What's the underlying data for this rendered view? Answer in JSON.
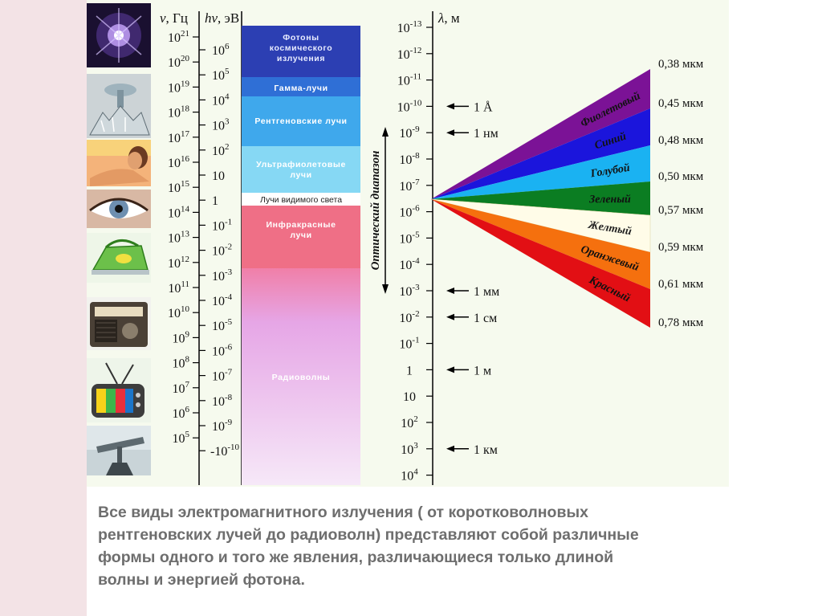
{
  "headers": {
    "nu_symbol": "ν",
    "nu_unit": ", Гц",
    "hnu_symbol": "hν",
    "hnu_unit": ", эВ",
    "lambda_symbol": "λ",
    "lambda_unit": ", м"
  },
  "frequency_ticks": [
    {
      "base": "10",
      "exp": "21"
    },
    {
      "base": "10",
      "exp": "20"
    },
    {
      "base": "10",
      "exp": "19"
    },
    {
      "base": "10",
      "exp": "18"
    },
    {
      "base": "10",
      "exp": "17"
    },
    {
      "base": "10",
      "exp": "16"
    },
    {
      "base": "10",
      "exp": "15"
    },
    {
      "base": "10",
      "exp": "14"
    },
    {
      "base": "10",
      "exp": "13"
    },
    {
      "base": "10",
      "exp": "12"
    },
    {
      "base": "10",
      "exp": "11"
    },
    {
      "base": "10",
      "exp": "10"
    },
    {
      "base": "10",
      "exp": "9"
    },
    {
      "base": "10",
      "exp": "8"
    },
    {
      "base": "10",
      "exp": "7"
    },
    {
      "base": "10",
      "exp": "6"
    },
    {
      "base": "10",
      "exp": "5"
    }
  ],
  "energy_ticks": [
    {
      "base": "10",
      "exp": "6"
    },
    {
      "base": "10",
      "exp": "5"
    },
    {
      "base": "10",
      "exp": "4"
    },
    {
      "base": "10",
      "exp": "3"
    },
    {
      "base": "10",
      "exp": "2"
    },
    {
      "base": "10",
      "exp": ""
    },
    {
      "base": "1",
      "exp": ""
    },
    {
      "base": "10",
      "exp": "-1"
    },
    {
      "base": "10",
      "exp": "-2"
    },
    {
      "base": "10",
      "exp": "-3"
    },
    {
      "base": "10",
      "exp": "-4"
    },
    {
      "base": "10",
      "exp": "-5"
    },
    {
      "base": "10",
      "exp": "-6"
    },
    {
      "base": "10",
      "exp": "-7"
    },
    {
      "base": "10",
      "exp": "-8"
    },
    {
      "base": "10",
      "exp": "-9"
    },
    {
      "base": "-10",
      "exp": "-10"
    }
  ],
  "wavelength_ticks": [
    {
      "base": "10",
      "exp": "-13"
    },
    {
      "base": "10",
      "exp": "-12"
    },
    {
      "base": "10",
      "exp": "-11"
    },
    {
      "base": "10",
      "exp": "-10"
    },
    {
      "base": "10",
      "exp": "-9"
    },
    {
      "base": "10",
      "exp": "-8"
    },
    {
      "base": "10",
      "exp": "-7"
    },
    {
      "base": "10",
      "exp": "-6"
    },
    {
      "base": "10",
      "exp": "-5"
    },
    {
      "base": "10",
      "exp": "-4"
    },
    {
      "base": "10",
      "exp": "-3"
    },
    {
      "base": "10",
      "exp": "-2"
    },
    {
      "base": "10",
      "exp": "-1"
    },
    {
      "base": "1",
      "exp": ""
    },
    {
      "base": "10",
      "exp": ""
    },
    {
      "base": "10",
      "exp": "2"
    },
    {
      "base": "10",
      "exp": "3"
    },
    {
      "base": "10",
      "exp": "4"
    }
  ],
  "wavelength_markers": [
    {
      "label": "1 Å"
    },
    {
      "label": "1 нм"
    },
    {
      "label": "1 мм"
    },
    {
      "label": "1 см"
    },
    {
      "label": "1 м"
    },
    {
      "label": "1 км"
    }
  ],
  "bands": [
    {
      "label": "Фотоны космического излучения",
      "color": "#2c3fb3"
    },
    {
      "label": "Гамма-лучи",
      "color": "#2f6fd6"
    },
    {
      "label": "Рентгеновские лучи",
      "color": "#3fa8ec"
    },
    {
      "label": "Ультрафиолетовые лучи",
      "color": "#86d8f4"
    },
    {
      "label": "Лучи видимого света",
      "color": "#ffffff"
    },
    {
      "label": "Инфракрасные лучи",
      "color": "#ef6f86"
    },
    {
      "label": "Радиоволны",
      "color": "#ecc9f1"
    }
  ],
  "optical_range_label": "Оптический диапазон",
  "visible_colors": [
    {
      "name": "Фиолетовый",
      "fill": "#7b1296"
    },
    {
      "name": "Синий",
      "fill": "#1b15dc"
    },
    {
      "name": "Голубой",
      "fill": "#1ab2f2"
    },
    {
      "name": "Зеленый",
      "fill": "#0b7d22"
    },
    {
      "name": "Желтый",
      "fill": "#fffce8"
    },
    {
      "name": "Оранжевый",
      "fill": "#f5700e"
    },
    {
      "name": "Красный",
      "fill": "#e20f14"
    }
  ],
  "visible_boundaries": [
    "0,38 мкм",
    "0,45 мкм",
    "0,48 мкм",
    "0,50 мкм",
    "0,57 мкм",
    "0,59 мкм",
    "0,61 мкм",
    "0,78 мкм"
  ],
  "source_icons": [
    "galaxy-icon",
    "x-ray-tube-icon",
    "sunbathing-woman-icon",
    "eye-icon",
    "iron-icon",
    "radio-receiver-icon",
    "television-icon",
    "radar-antenna-icon"
  ],
  "caption": {
    "line1": "Все виды электромагнитного излучения ( от коротковолновых",
    "line2": "рентгеновских лучей до  радиоволн)  представляют собой различные",
    "line3": "формы одного и того же явления, различающиеся только длиной",
    "line4": "волны и энергией фотона."
  }
}
